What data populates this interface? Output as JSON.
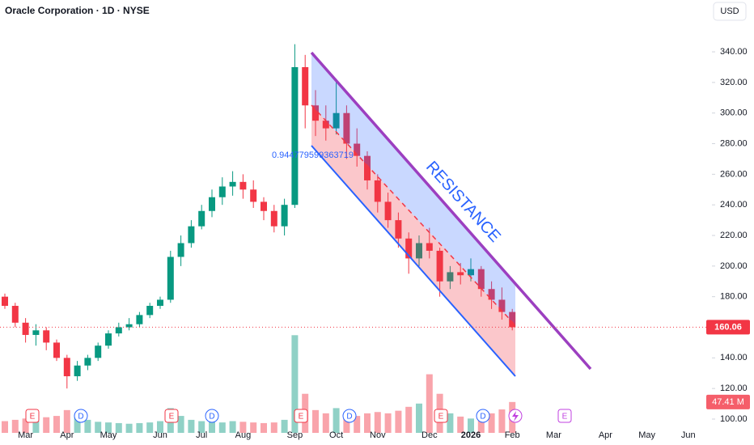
{
  "header": {
    "title": "Oracle Corporation · 1D · NYSE",
    "currency": "USD"
  },
  "chart_data": {
    "type": "candlestick",
    "categories": [
      null,
      null,
      "Mar",
      null,
      null,
      null,
      "Apr",
      null,
      null,
      null,
      "May",
      null,
      null,
      null,
      null,
      "Jun",
      null,
      null,
      null,
      "Jul",
      null,
      null,
      null,
      "Aug",
      null,
      null,
      null,
      null,
      "Sep",
      null,
      null,
      null,
      "Oct",
      null,
      null,
      null,
      "Nov",
      null,
      null,
      null,
      null,
      "Dec",
      null,
      null,
      null,
      "2026",
      null,
      null,
      null,
      "Feb",
      null,
      null,
      null,
      "Mar",
      null,
      null,
      null,
      null,
      "Apr",
      null,
      null,
      null,
      "May",
      null,
      null,
      null,
      "Jun",
      null
    ],
    "open": [
      180,
      174,
      163,
      155,
      158,
      150,
      140,
      128,
      135,
      140,
      148,
      156,
      160,
      162,
      168,
      174,
      178,
      206,
      215,
      226,
      236,
      245,
      252,
      255,
      250,
      242,
      236,
      226,
      240,
      330,
      305,
      295,
      290,
      300,
      280,
      272,
      256,
      242,
      230,
      218,
      205,
      215,
      210,
      190,
      196,
      194,
      198,
      185,
      178,
      170,
      null,
      null,
      null,
      null,
      null,
      null,
      null,
      null,
      null,
      null,
      null,
      null,
      null,
      null,
      null,
      null,
      null,
      null
    ],
    "high": [
      182,
      176,
      166,
      162,
      160,
      152,
      142,
      138,
      142,
      150,
      158,
      163,
      166,
      170,
      176,
      180,
      210,
      220,
      230,
      240,
      250,
      258,
      262,
      260,
      256,
      245,
      240,
      244,
      345,
      338,
      315,
      305,
      322,
      305,
      290,
      275,
      260,
      248,
      235,
      222,
      220,
      225,
      212,
      200,
      202,
      205,
      200,
      190,
      186,
      172,
      null,
      null,
      null,
      null,
      null,
      null,
      null,
      null,
      null,
      null,
      null,
      null,
      null,
      null,
      null,
      null,
      null,
      null
    ],
    "low": [
      172,
      160,
      150,
      148,
      145,
      138,
      120,
      125,
      132,
      138,
      146,
      154,
      158,
      160,
      166,
      172,
      176,
      200,
      212,
      224,
      232,
      240,
      246,
      244,
      238,
      230,
      222,
      220,
      238,
      290,
      285,
      282,
      286,
      270,
      265,
      250,
      235,
      225,
      212,
      195,
      200,
      205,
      180,
      185,
      188,
      190,
      180,
      172,
      165,
      158,
      null,
      null,
      null,
      null,
      null,
      null,
      null,
      null,
      null,
      null,
      null,
      null,
      null,
      null,
      null,
      null,
      null,
      null
    ],
    "close": [
      174,
      163,
      155,
      158,
      150,
      140,
      128,
      135,
      140,
      148,
      156,
      160,
      162,
      168,
      174,
      178,
      206,
      215,
      226,
      236,
      245,
      252,
      255,
      250,
      242,
      236,
      226,
      240,
      330,
      305,
      295,
      290,
      300,
      280,
      272,
      256,
      242,
      230,
      218,
      205,
      215,
      210,
      190,
      196,
      194,
      198,
      185,
      178,
      170,
      160.06,
      null,
      null,
      null,
      null,
      null,
      null,
      null,
      null,
      null,
      null,
      null,
      null,
      null,
      null,
      null,
      null,
      null,
      null
    ],
    "volume": [
      18,
      20,
      22,
      19,
      24,
      26,
      35,
      28,
      20,
      17,
      16,
      15,
      14,
      15,
      16,
      18,
      38,
      26,
      20,
      18,
      17,
      16,
      18,
      17,
      16,
      15,
      16,
      20,
      150,
      60,
      35,
      30,
      38,
      28,
      26,
      30,
      32,
      30,
      34,
      40,
      45,
      90,
      60,
      30,
      25,
      22,
      28,
      30,
      36,
      47.41,
      null,
      null,
      null,
      null,
      null,
      null,
      null,
      null,
      null,
      null,
      null,
      null,
      null,
      null,
      null,
      null,
      null,
      null
    ],
    "up_color": "#089981",
    "down_color": "#f23645",
    "ylim": [
      91,
      363.3
    ],
    "yticks": [
      {
        "value": 100,
        "label": "100.00"
      },
      {
        "value": 120,
        "label": "120.00"
      },
      {
        "value": 140,
        "label": "140.00"
      },
      {
        "value": 160,
        "label": "160.00"
      },
      {
        "value": 180,
        "label": "180.00"
      },
      {
        "value": 200,
        "label": "200.00"
      },
      {
        "value": 220,
        "label": "220.00"
      },
      {
        "value": 240,
        "label": "240.00"
      },
      {
        "value": 260,
        "label": "260.00"
      },
      {
        "value": 280,
        "label": "280.00"
      },
      {
        "value": 300,
        "label": "300.00"
      },
      {
        "value": 320,
        "label": "320.00"
      },
      {
        "value": 340,
        "label": "340.00"
      }
    ],
    "volume_lim": [
      0,
      640
    ],
    "last_price": {
      "value": 160.06,
      "label": "160.06"
    },
    "last_volume": {
      "value": 47.41,
      "label": "47.41 M"
    },
    "annotations": {
      "resistance": "RESISTANCE",
      "ratio": "0.944779599363719"
    },
    "events": [
      "E",
      "D",
      "E",
      "D",
      "E",
      "D",
      "E",
      "D",
      "E"
    ],
    "grid": false
  }
}
